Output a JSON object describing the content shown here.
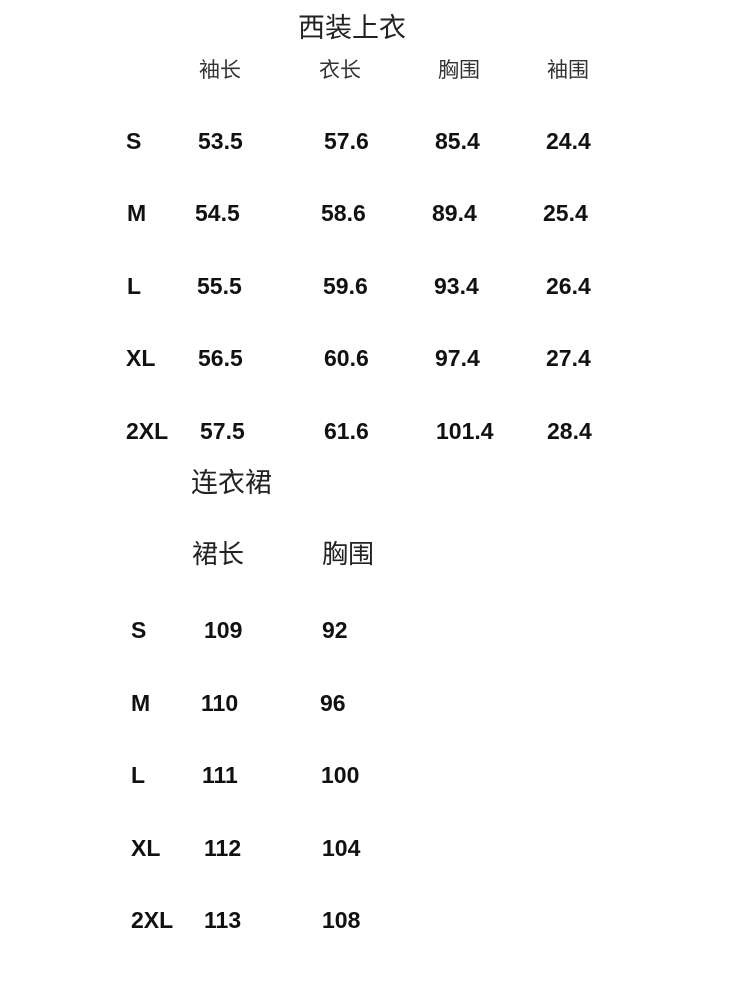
{
  "jacket": {
    "title": "西装上衣",
    "headers": [
      "袖长",
      "衣长",
      "胸围",
      "袖围"
    ],
    "rows": [
      {
        "size": "S",
        "values": [
          "53.5",
          "57.6",
          "85.4",
          "24.4"
        ]
      },
      {
        "size": "M",
        "values": [
          "54.5",
          "58.6",
          "89.4",
          "25.4"
        ]
      },
      {
        "size": "L",
        "values": [
          "55.5",
          "59.6",
          "93.4",
          "26.4"
        ]
      },
      {
        "size": "XL",
        "values": [
          "56.5",
          "60.6",
          "97.4",
          "27.4"
        ]
      },
      {
        "size": "2XL",
        "values": [
          "57.5",
          "61.6",
          "101.4",
          "28.4"
        ]
      }
    ]
  },
  "dress": {
    "title": "连衣裙",
    "headers": [
      "裙长",
      "胸围"
    ],
    "rows": [
      {
        "size": "S",
        "values": [
          "109",
          "92"
        ]
      },
      {
        "size": "M",
        "values": [
          "110",
          "96"
        ]
      },
      {
        "size": "L",
        "values": [
          "111",
          "100"
        ]
      },
      {
        "size": "XL",
        "values": [
          "112",
          "104"
        ]
      },
      {
        "size": "2XL",
        "values": [
          "113",
          "108"
        ]
      }
    ]
  }
}
